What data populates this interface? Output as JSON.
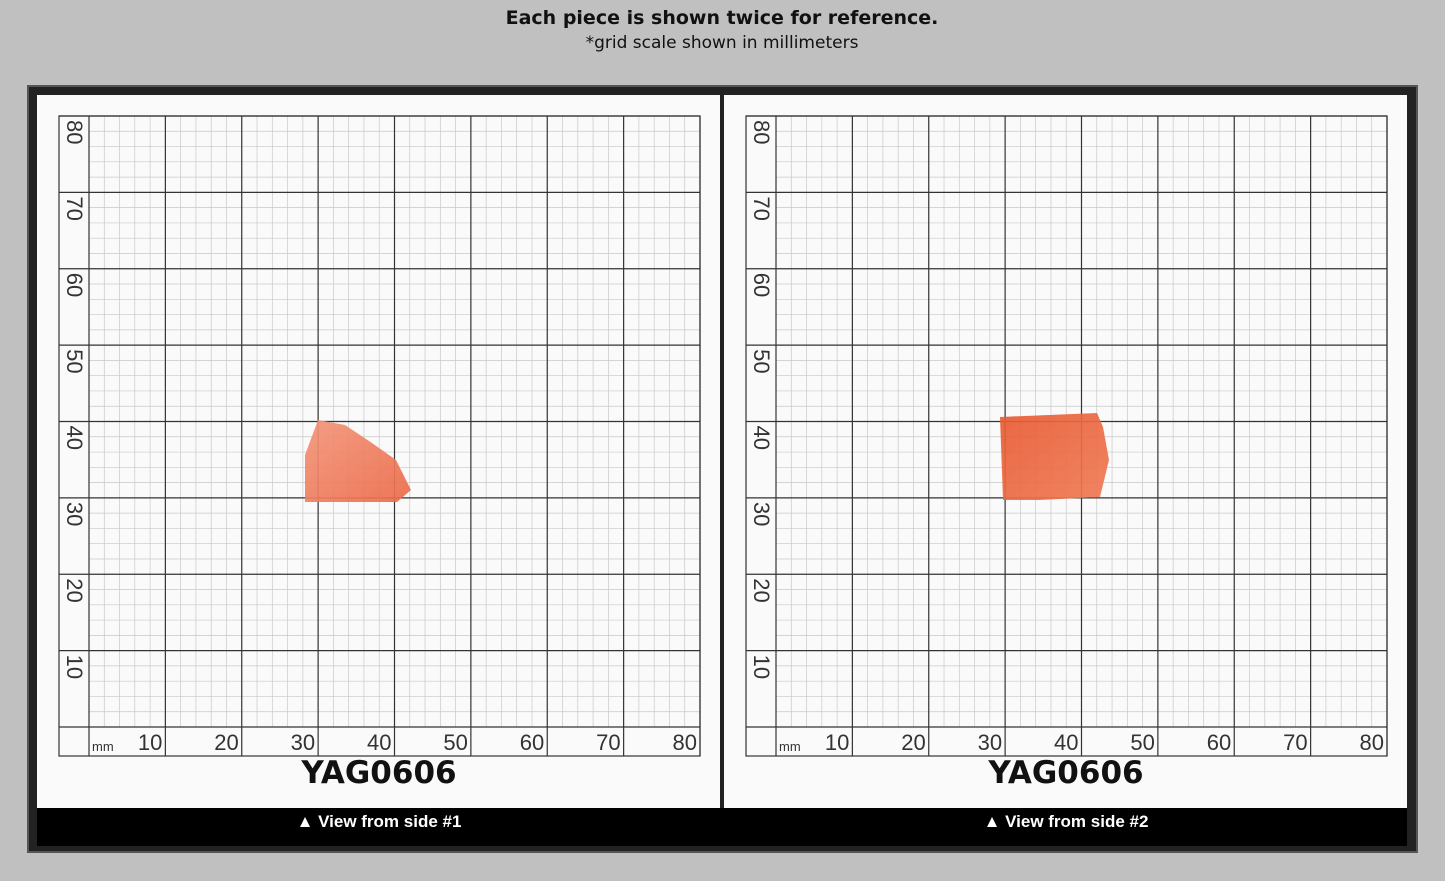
{
  "header": {
    "title": "Each piece is shown twice for reference.",
    "subtitle": "*grid scale shown in millimeters"
  },
  "panels": [
    {
      "unit": "mm",
      "x_labels": [
        10,
        20,
        30,
        40,
        50,
        60,
        70,
        80
      ],
      "y_labels": [
        80,
        70,
        60,
        50,
        40,
        30,
        20,
        10
      ],
      "label": "YAG0606",
      "caption": "▲ View from side #1"
    },
    {
      "unit": "mm",
      "x_labels": [
        10,
        20,
        30,
        40,
        50,
        60,
        70,
        80
      ],
      "y_labels": [
        80,
        70,
        60,
        50,
        40,
        30,
        20,
        10
      ],
      "label": "YAG0606",
      "caption": "▲ View from side #2"
    }
  ]
}
